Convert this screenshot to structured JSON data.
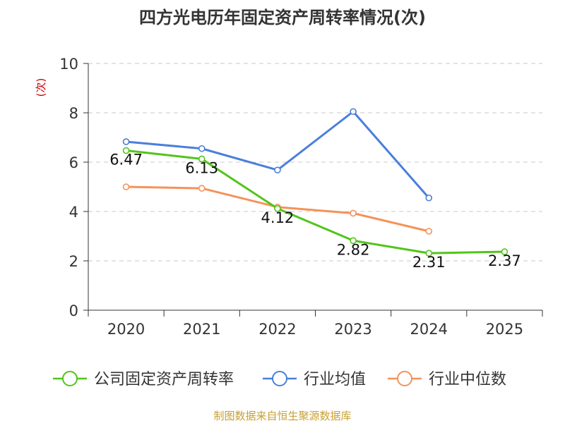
{
  "chart_data": {
    "type": "line",
    "title": "四方光电历年固定资产周转率情况(次)",
    "ylabel": "(次)",
    "xlabel": "",
    "ylim": [
      0,
      10
    ],
    "yticks": [
      0,
      2,
      4,
      6,
      8,
      10
    ],
    "categories": [
      "2020",
      "2021",
      "2022",
      "2023",
      "2024",
      "2025"
    ],
    "series": [
      {
        "name": "公司固定资产周转率",
        "color": "#52c41a",
        "values": [
          6.47,
          6.13,
          4.12,
          2.82,
          2.31,
          2.37
        ],
        "labels": [
          "6.47",
          "6.13",
          "4.12",
          "2.82",
          "2.31",
          "2.37"
        ]
      },
      {
        "name": "行业均值",
        "color": "#4a7fdb",
        "values": [
          6.83,
          6.55,
          5.68,
          8.05,
          4.55,
          null
        ]
      },
      {
        "name": "行业中位数",
        "color": "#f5925a",
        "values": [
          5.0,
          4.94,
          4.18,
          3.93,
          3.2,
          null
        ]
      }
    ],
    "grid": true,
    "legend_position": "bottom",
    "source": "制图数据来自恒生聚源数据库",
    "source_color": "#c8a032",
    "ylabel_color": "#cc0000"
  }
}
